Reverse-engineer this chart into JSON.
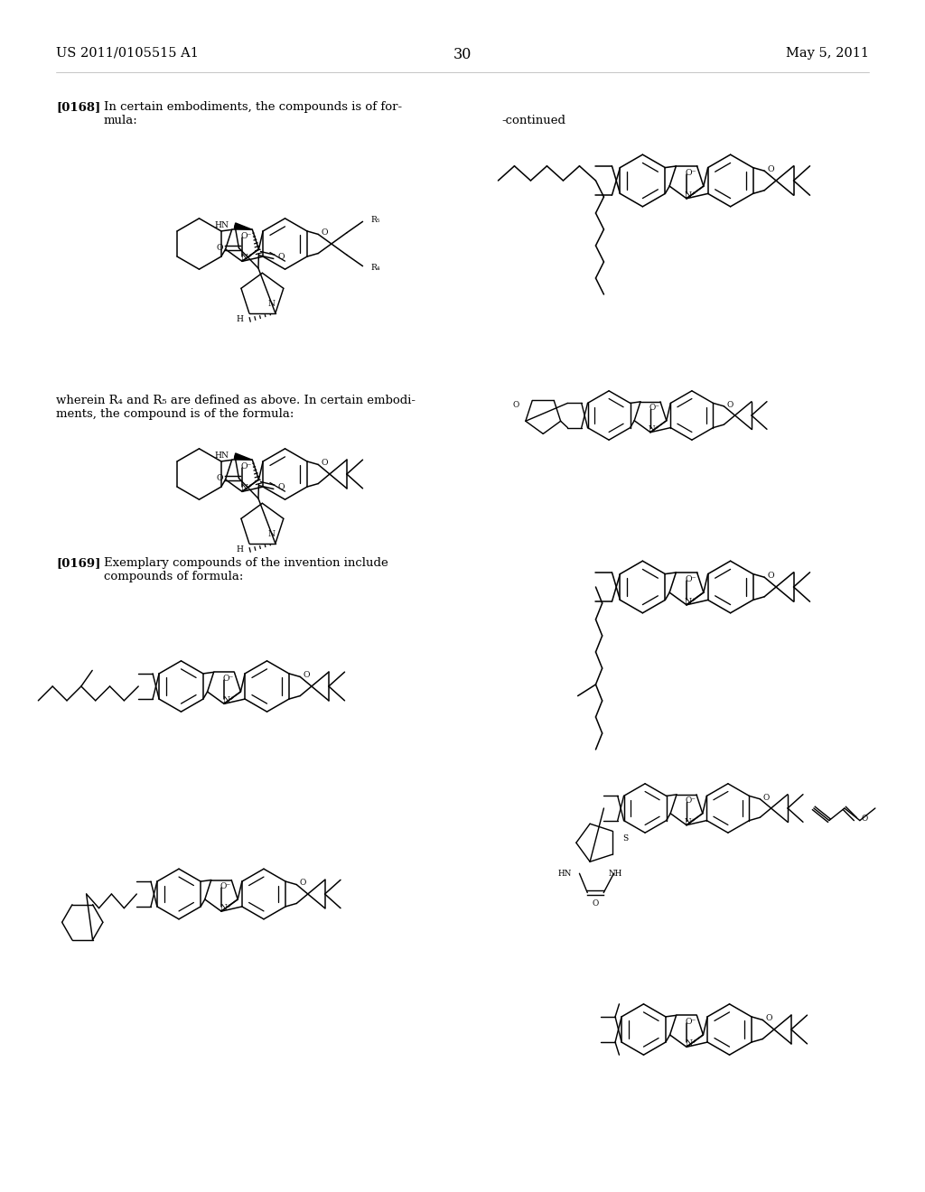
{
  "bg": "#ffffff",
  "header_left": "US 2011/0105515 A1",
  "header_center": "30",
  "header_right": "May 5, 2011",
  "para0168": "[0168]   In certain embodiments, the compounds is of for-\nmula:",
  "para_wherein": "wherein R₄ and R₅ are defined as above. In certain embodi-\nments, the compound is of the formula:",
  "para0169": "[0169]   Exemplary compounds of the invention include\ncompounds of formula:",
  "continued": "-continued"
}
